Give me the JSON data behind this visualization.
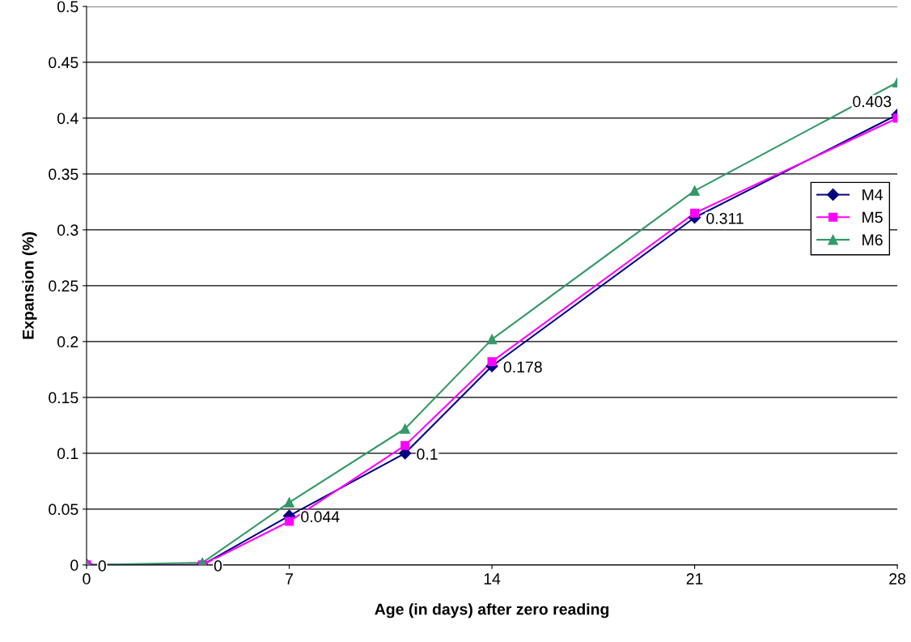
{
  "chart_data": {
    "type": "line",
    "xlabel": "Age (in days) after zero reading",
    "ylabel": "Expansion (%)",
    "xlim": [
      0,
      28
    ],
    "xticks": [
      0,
      7,
      14,
      21,
      28
    ],
    "ylim": [
      0,
      0.5
    ],
    "yticks": [
      0,
      0.05,
      0.1,
      0.15,
      0.2,
      0.25,
      0.3,
      0.35,
      0.4,
      0.45,
      0.5
    ],
    "grid": "y",
    "legend": "right",
    "series": [
      {
        "name": "M4",
        "color": "#000080",
        "marker": "diamond",
        "x": [
          0,
          4,
          7,
          11,
          14,
          21,
          28
        ],
        "values": [
          0,
          0,
          0.044,
          0.1,
          0.178,
          0.311,
          0.403
        ],
        "data_labels": true
      },
      {
        "name": "M5",
        "color": "#ff00ff",
        "marker": "square",
        "x": [
          0,
          4,
          7,
          11,
          14,
          21,
          28
        ],
        "values": [
          0,
          0,
          0.039,
          0.107,
          0.182,
          0.315,
          0.4
        ]
      },
      {
        "name": "M6",
        "color": "#339966",
        "marker": "triangle",
        "x": [
          0,
          4,
          7,
          11,
          14,
          21,
          28
        ],
        "values": [
          0,
          0.002,
          0.056,
          0.122,
          0.202,
          0.335,
          0.432
        ]
      }
    ]
  }
}
